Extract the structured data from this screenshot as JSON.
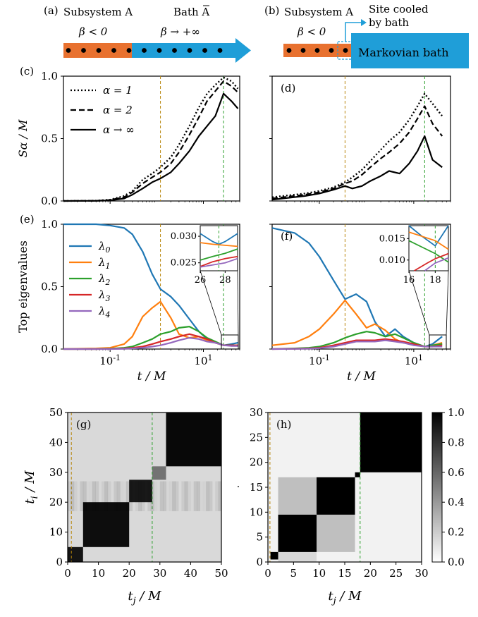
{
  "schematic": {
    "a": {
      "tag": "(a)",
      "sub_label": "Subsystem A",
      "bath_label": "Bath A",
      "sub_beta": "β < 0",
      "bath_beta": "β → +∞"
    },
    "b": {
      "tag": "(b)",
      "sub_label": "Subsystem A",
      "sub_beta": "β < 0",
      "cooled_line1": "Site cooled",
      "cooled_line2": "by bath",
      "bath_box": "Markovian bath"
    },
    "colors": {
      "subsystem": "#e8712f",
      "bath": "#1f9ed8"
    }
  },
  "colors": {
    "lambda0": "#1f77b4",
    "lambda1": "#ff7f0e",
    "lambda2": "#2ca02c",
    "lambda3": "#d62728",
    "lambda4": "#9467bd",
    "orange_vline": "#b8860b",
    "green_vline": "#2ca02c"
  },
  "chart_data": [
    {
      "panel": "(c)",
      "type": "line",
      "xscale": "log",
      "xlim": [
        0.01,
        60
      ],
      "ylim": [
        0,
        1.0
      ],
      "ylabel": "S_α / M",
      "yticks": [
        "0.0",
        "0.5",
        "1.0"
      ],
      "vlines": [
        1.2,
        27
      ],
      "series": [
        {
          "name": "α = 1",
          "style": "dotted",
          "x": [
            0.01,
            0.05,
            0.1,
            0.2,
            0.3,
            0.5,
            0.8,
            1.2,
            2,
            3,
            5,
            8,
            12,
            18,
            27,
            40,
            55
          ],
          "y": [
            0.0,
            0.002,
            0.01,
            0.04,
            0.08,
            0.17,
            0.22,
            0.27,
            0.35,
            0.45,
            0.6,
            0.75,
            0.86,
            0.93,
            0.99,
            0.96,
            0.9
          ]
        },
        {
          "name": "α = 2",
          "style": "dashed",
          "x": [
            0.01,
            0.05,
            0.1,
            0.2,
            0.3,
            0.5,
            0.8,
            1.2,
            2,
            3,
            5,
            8,
            12,
            18,
            27,
            40,
            55
          ],
          "y": [
            0.0,
            0.0015,
            0.008,
            0.03,
            0.07,
            0.14,
            0.19,
            0.23,
            0.3,
            0.39,
            0.53,
            0.67,
            0.8,
            0.88,
            0.96,
            0.92,
            0.87
          ]
        },
        {
          "name": "α → ∞",
          "style": "solid",
          "x": [
            0.01,
            0.05,
            0.1,
            0.2,
            0.3,
            0.5,
            0.8,
            1.2,
            2,
            3,
            5,
            8,
            12,
            18,
            27,
            40,
            55
          ],
          "y": [
            0.0,
            0.001,
            0.005,
            0.02,
            0.05,
            0.1,
            0.15,
            0.18,
            0.23,
            0.3,
            0.4,
            0.52,
            0.6,
            0.68,
            0.86,
            0.8,
            0.74
          ]
        }
      ]
    },
    {
      "panel": "(d)",
      "type": "line",
      "xscale": "log",
      "xlim": [
        0.01,
        60
      ],
      "ylim": [
        0,
        1.0
      ],
      "vlines": [
        0.35,
        17
      ],
      "series": [
        {
          "name": "α = 1",
          "style": "dotted",
          "x": [
            0.01,
            0.05,
            0.1,
            0.2,
            0.35,
            0.5,
            0.8,
            1.2,
            2,
            3,
            5,
            8,
            12,
            17,
            25,
            40
          ],
          "y": [
            0.03,
            0.06,
            0.08,
            0.11,
            0.15,
            0.19,
            0.25,
            0.32,
            0.41,
            0.48,
            0.55,
            0.65,
            0.76,
            0.86,
            0.78,
            0.68
          ]
        },
        {
          "name": "α = 2",
          "style": "dashed",
          "x": [
            0.01,
            0.05,
            0.1,
            0.2,
            0.35,
            0.5,
            0.8,
            1.2,
            2,
            3,
            5,
            8,
            12,
            17,
            25,
            40
          ],
          "y": [
            0.02,
            0.05,
            0.07,
            0.1,
            0.14,
            0.16,
            0.21,
            0.27,
            0.34,
            0.39,
            0.46,
            0.55,
            0.66,
            0.76,
            0.62,
            0.52
          ]
        },
        {
          "name": "α → ∞",
          "style": "solid",
          "x": [
            0.01,
            0.05,
            0.1,
            0.2,
            0.35,
            0.5,
            0.8,
            1.2,
            2,
            3,
            5,
            8,
            12,
            17,
            25,
            40
          ],
          "y": [
            0.01,
            0.04,
            0.06,
            0.09,
            0.12,
            0.1,
            0.12,
            0.16,
            0.2,
            0.24,
            0.22,
            0.3,
            0.4,
            0.52,
            0.33,
            0.27
          ]
        }
      ]
    },
    {
      "panel": "(e)",
      "type": "line",
      "xscale": "log",
      "xlim": [
        0.01,
        60
      ],
      "ylim": [
        0,
        1.0
      ],
      "ylabel": "Top eigenvalues",
      "xlabel": "t / M",
      "yticks": [
        "0.0",
        "0.5",
        "1.0"
      ],
      "xticks": [
        "10^-1",
        "10^1"
      ],
      "vlines": [
        1.2,
        27
      ],
      "series": [
        {
          "name": "λ0",
          "x": [
            0.01,
            0.05,
            0.1,
            0.2,
            0.3,
            0.5,
            0.8,
            1.2,
            2,
            3,
            5,
            8,
            12,
            18,
            27,
            40,
            55
          ],
          "y": [
            1.0,
            1.0,
            0.99,
            0.97,
            0.92,
            0.78,
            0.6,
            0.48,
            0.42,
            0.35,
            0.24,
            0.14,
            0.08,
            0.05,
            0.03,
            0.04,
            0.05
          ]
        },
        {
          "name": "λ1",
          "x": [
            0.01,
            0.05,
            0.1,
            0.2,
            0.3,
            0.5,
            0.8,
            1.2,
            2,
            3,
            5,
            8,
            12,
            18,
            27,
            40,
            55
          ],
          "y": [
            0.0,
            0.005,
            0.01,
            0.04,
            0.1,
            0.26,
            0.33,
            0.38,
            0.25,
            0.12,
            0.09,
            0.1,
            0.07,
            0.05,
            0.03,
            0.03,
            0.03
          ]
        },
        {
          "name": "λ2",
          "x": [
            0.01,
            0.05,
            0.1,
            0.2,
            0.3,
            0.5,
            0.8,
            1.2,
            2,
            3,
            5,
            8,
            12,
            18,
            27,
            40,
            55
          ],
          "y": [
            0.0,
            0.0,
            0.003,
            0.01,
            0.02,
            0.05,
            0.08,
            0.12,
            0.14,
            0.17,
            0.18,
            0.14,
            0.09,
            0.06,
            0.03,
            0.03,
            0.03
          ]
        },
        {
          "name": "λ3",
          "x": [
            0.01,
            0.05,
            0.1,
            0.2,
            0.3,
            0.5,
            0.8,
            1.2,
            2,
            3,
            5,
            8,
            12,
            18,
            27,
            40,
            55
          ],
          "y": [
            0.0,
            0.0,
            0.001,
            0.005,
            0.01,
            0.02,
            0.04,
            0.06,
            0.08,
            0.1,
            0.12,
            0.1,
            0.08,
            0.05,
            0.03,
            0.03,
            0.03
          ]
        },
        {
          "name": "λ4",
          "x": [
            0.01,
            0.05,
            0.1,
            0.2,
            0.3,
            0.5,
            0.8,
            1.2,
            2,
            3,
            5,
            8,
            12,
            18,
            27,
            40,
            55
          ],
          "y": [
            0.0,
            0.0,
            0.0,
            0.002,
            0.005,
            0.01,
            0.02,
            0.03,
            0.05,
            0.07,
            0.09,
            0.08,
            0.06,
            0.05,
            0.03,
            0.025,
            0.025
          ]
        }
      ],
      "inset": {
        "xlim": [
          26,
          29
        ],
        "ylim": [
          0.0235,
          0.032
        ],
        "xticks": [
          "26",
          "28"
        ],
        "yticks": [
          "0.025",
          "0.030"
        ],
        "vline": 27.5,
        "series": [
          {
            "name": "λ0",
            "x": [
              26,
              27,
              27.5,
              28,
              29
            ],
            "y": [
              0.0305,
              0.029,
              0.0285,
              0.029,
              0.0305
            ]
          },
          {
            "name": "λ1",
            "x": [
              26,
              27,
              28,
              29
            ],
            "y": [
              0.0288,
              0.0285,
              0.0283,
              0.0281
            ]
          },
          {
            "name": "λ2",
            "x": [
              26,
              27,
              28,
              29
            ],
            "y": [
              0.0255,
              0.0262,
              0.0268,
              0.0276
            ]
          },
          {
            "name": "λ3",
            "x": [
              26,
              27,
              28,
              29
            ],
            "y": [
              0.0243,
              0.0252,
              0.0258,
              0.0262
            ]
          },
          {
            "name": "λ4",
            "x": [
              26,
              27,
              28,
              29
            ],
            "y": [
              0.0242,
              0.0246,
              0.025,
              0.0258
            ]
          }
        ]
      }
    },
    {
      "panel": "(f)",
      "type": "line",
      "xscale": "log",
      "xlim": [
        0.01,
        60
      ],
      "ylim": [
        0,
        1.0
      ],
      "xlabel": "t / M",
      "xticks": [
        "10^-1",
        "10^1"
      ],
      "vlines": [
        0.35,
        17
      ],
      "series": [
        {
          "name": "λ0",
          "x": [
            0.01,
            0.03,
            0.06,
            0.1,
            0.2,
            0.35,
            0.6,
            1,
            1.5,
            2.5,
            4,
            6,
            10,
            17,
            25,
            40
          ],
          "y": [
            0.97,
            0.93,
            0.85,
            0.74,
            0.55,
            0.4,
            0.44,
            0.38,
            0.22,
            0.1,
            0.16,
            0.1,
            0.05,
            0.02,
            0.04,
            0.1
          ]
        },
        {
          "name": "λ1",
          "x": [
            0.01,
            0.03,
            0.06,
            0.1,
            0.2,
            0.35,
            0.6,
            1,
            1.5,
            2.5,
            4,
            6,
            10,
            17,
            25,
            40
          ],
          "y": [
            0.03,
            0.05,
            0.1,
            0.16,
            0.28,
            0.39,
            0.28,
            0.17,
            0.2,
            0.15,
            0.08,
            0.05,
            0.04,
            0.02,
            0.03,
            0.05
          ]
        },
        {
          "name": "λ2",
          "x": [
            0.01,
            0.03,
            0.06,
            0.1,
            0.2,
            0.35,
            0.6,
            1,
            1.5,
            2.5,
            4,
            6,
            10,
            17,
            25,
            40
          ],
          "y": [
            0.0,
            0.005,
            0.01,
            0.02,
            0.05,
            0.09,
            0.12,
            0.14,
            0.13,
            0.1,
            0.12,
            0.09,
            0.05,
            0.02,
            0.03,
            0.04
          ]
        },
        {
          "name": "λ3",
          "x": [
            0.01,
            0.03,
            0.06,
            0.1,
            0.2,
            0.35,
            0.6,
            1,
            1.5,
            2.5,
            4,
            6,
            10,
            17,
            25,
            40
          ],
          "y": [
            0.0,
            0.002,
            0.005,
            0.01,
            0.03,
            0.05,
            0.07,
            0.07,
            0.07,
            0.08,
            0.07,
            0.06,
            0.04,
            0.02,
            0.02,
            0.03
          ]
        },
        {
          "name": "λ4",
          "x": [
            0.01,
            0.03,
            0.06,
            0.1,
            0.2,
            0.35,
            0.6,
            1,
            1.5,
            2.5,
            4,
            6,
            10,
            17,
            25,
            40
          ],
          "y": [
            0.0,
            0.001,
            0.003,
            0.007,
            0.02,
            0.04,
            0.06,
            0.06,
            0.06,
            0.07,
            0.06,
            0.05,
            0.03,
            0.02,
            0.02,
            0.02
          ]
        }
      ],
      "inset": {
        "xlim": [
          16,
          19
        ],
        "ylim": [
          0.0075,
          0.018
        ],
        "xticks": [
          "16",
          "18"
        ],
        "yticks": [
          "0.010",
          "0.015"
        ],
        "vline": 18,
        "series": [
          {
            "name": "λ0",
            "x": [
              16,
              17,
              18,
              19
            ],
            "y": [
              0.018,
              0.0155,
              0.0133,
              0.018
            ]
          },
          {
            "name": "λ1",
            "x": [
              16,
              17,
              18,
              19
            ],
            "y": [
              0.0165,
              0.0155,
              0.0145,
              0.0125
            ]
          },
          {
            "name": "λ2",
            "x": [
              16,
              17,
              18,
              19
            ],
            "y": [
              0.0145,
              0.013,
              0.0115,
              0.0095
            ]
          },
          {
            "name": "λ3",
            "x": [
              16.4,
              17.4,
              18,
              19
            ],
            "y": [
              0.0075,
              0.0093,
              0.0103,
              0.0115
            ]
          },
          {
            "name": "λ4",
            "x": [
              17.2,
              18,
              19
            ],
            "y": [
              0.0075,
              0.0093,
              0.0105
            ]
          }
        ]
      }
    },
    {
      "panel": "(g)",
      "type": "heatmap",
      "xlim": [
        0,
        50
      ],
      "ylim": [
        0,
        50
      ],
      "xlabel": "t_j / M",
      "ylabel": "t_i / M",
      "xticks": [
        "0",
        "10",
        "20",
        "30",
        "40",
        "50"
      ],
      "yticks": [
        "0",
        "10",
        "20",
        "30",
        "40",
        "50"
      ],
      "vlines": [
        1.2,
        27.5
      ],
      "blocks": [
        {
          "range": [
            0,
            5
          ],
          "value": 0.92
        },
        {
          "range": [
            5,
            20
          ],
          "value": 0.95
        },
        {
          "range": [
            20,
            27.5
          ],
          "value": 0.9
        },
        {
          "range": [
            27.5,
            32
          ],
          "value": 0.55
        },
        {
          "range": [
            32,
            50
          ],
          "value": 0.97
        }
      ],
      "background": 0.15
    },
    {
      "panel": "(h)",
      "type": "heatmap",
      "xlim": [
        0,
        30
      ],
      "ylim": [
        0,
        30
      ],
      "xlabel": "t_j / M",
      "ylabel": ".",
      "xticks": [
        "0",
        "5",
        "10",
        "15",
        "20",
        "25",
        "30"
      ],
      "yticks": [
        "0",
        "5",
        "10",
        "15",
        "20",
        "25",
        "30"
      ],
      "vlines": [
        0.4,
        18
      ],
      "blocks": [
        {
          "range": [
            0.5,
            2
          ],
          "value": 1.0
        },
        {
          "range": [
            2,
            9.5
          ],
          "value": 1.0
        },
        {
          "range": [
            9.5,
            17
          ],
          "value": 1.0
        },
        {
          "range": [
            17,
            18
          ],
          "value": 1.0
        },
        {
          "range": [
            18,
            30
          ],
          "value": 1.0
        }
      ],
      "off_diagonal": [
        {
          "rows": [
            9.5,
            17
          ],
          "cols": [
            2,
            9.5
          ],
          "value": 0.25
        },
        {
          "rows": [
            2,
            9.5
          ],
          "cols": [
            9.5,
            17
          ],
          "value": 0.25
        },
        {
          "rows": [
            0,
            2
          ],
          "cols": [
            2,
            9.5
          ],
          "value": 0.15
        }
      ],
      "background": 0.05,
      "colorbar": {
        "range": [
          0,
          1
        ],
        "ticks": [
          "0.0",
          "0.2",
          "0.4",
          "0.6",
          "0.8",
          "1.0"
        ]
      }
    }
  ]
}
